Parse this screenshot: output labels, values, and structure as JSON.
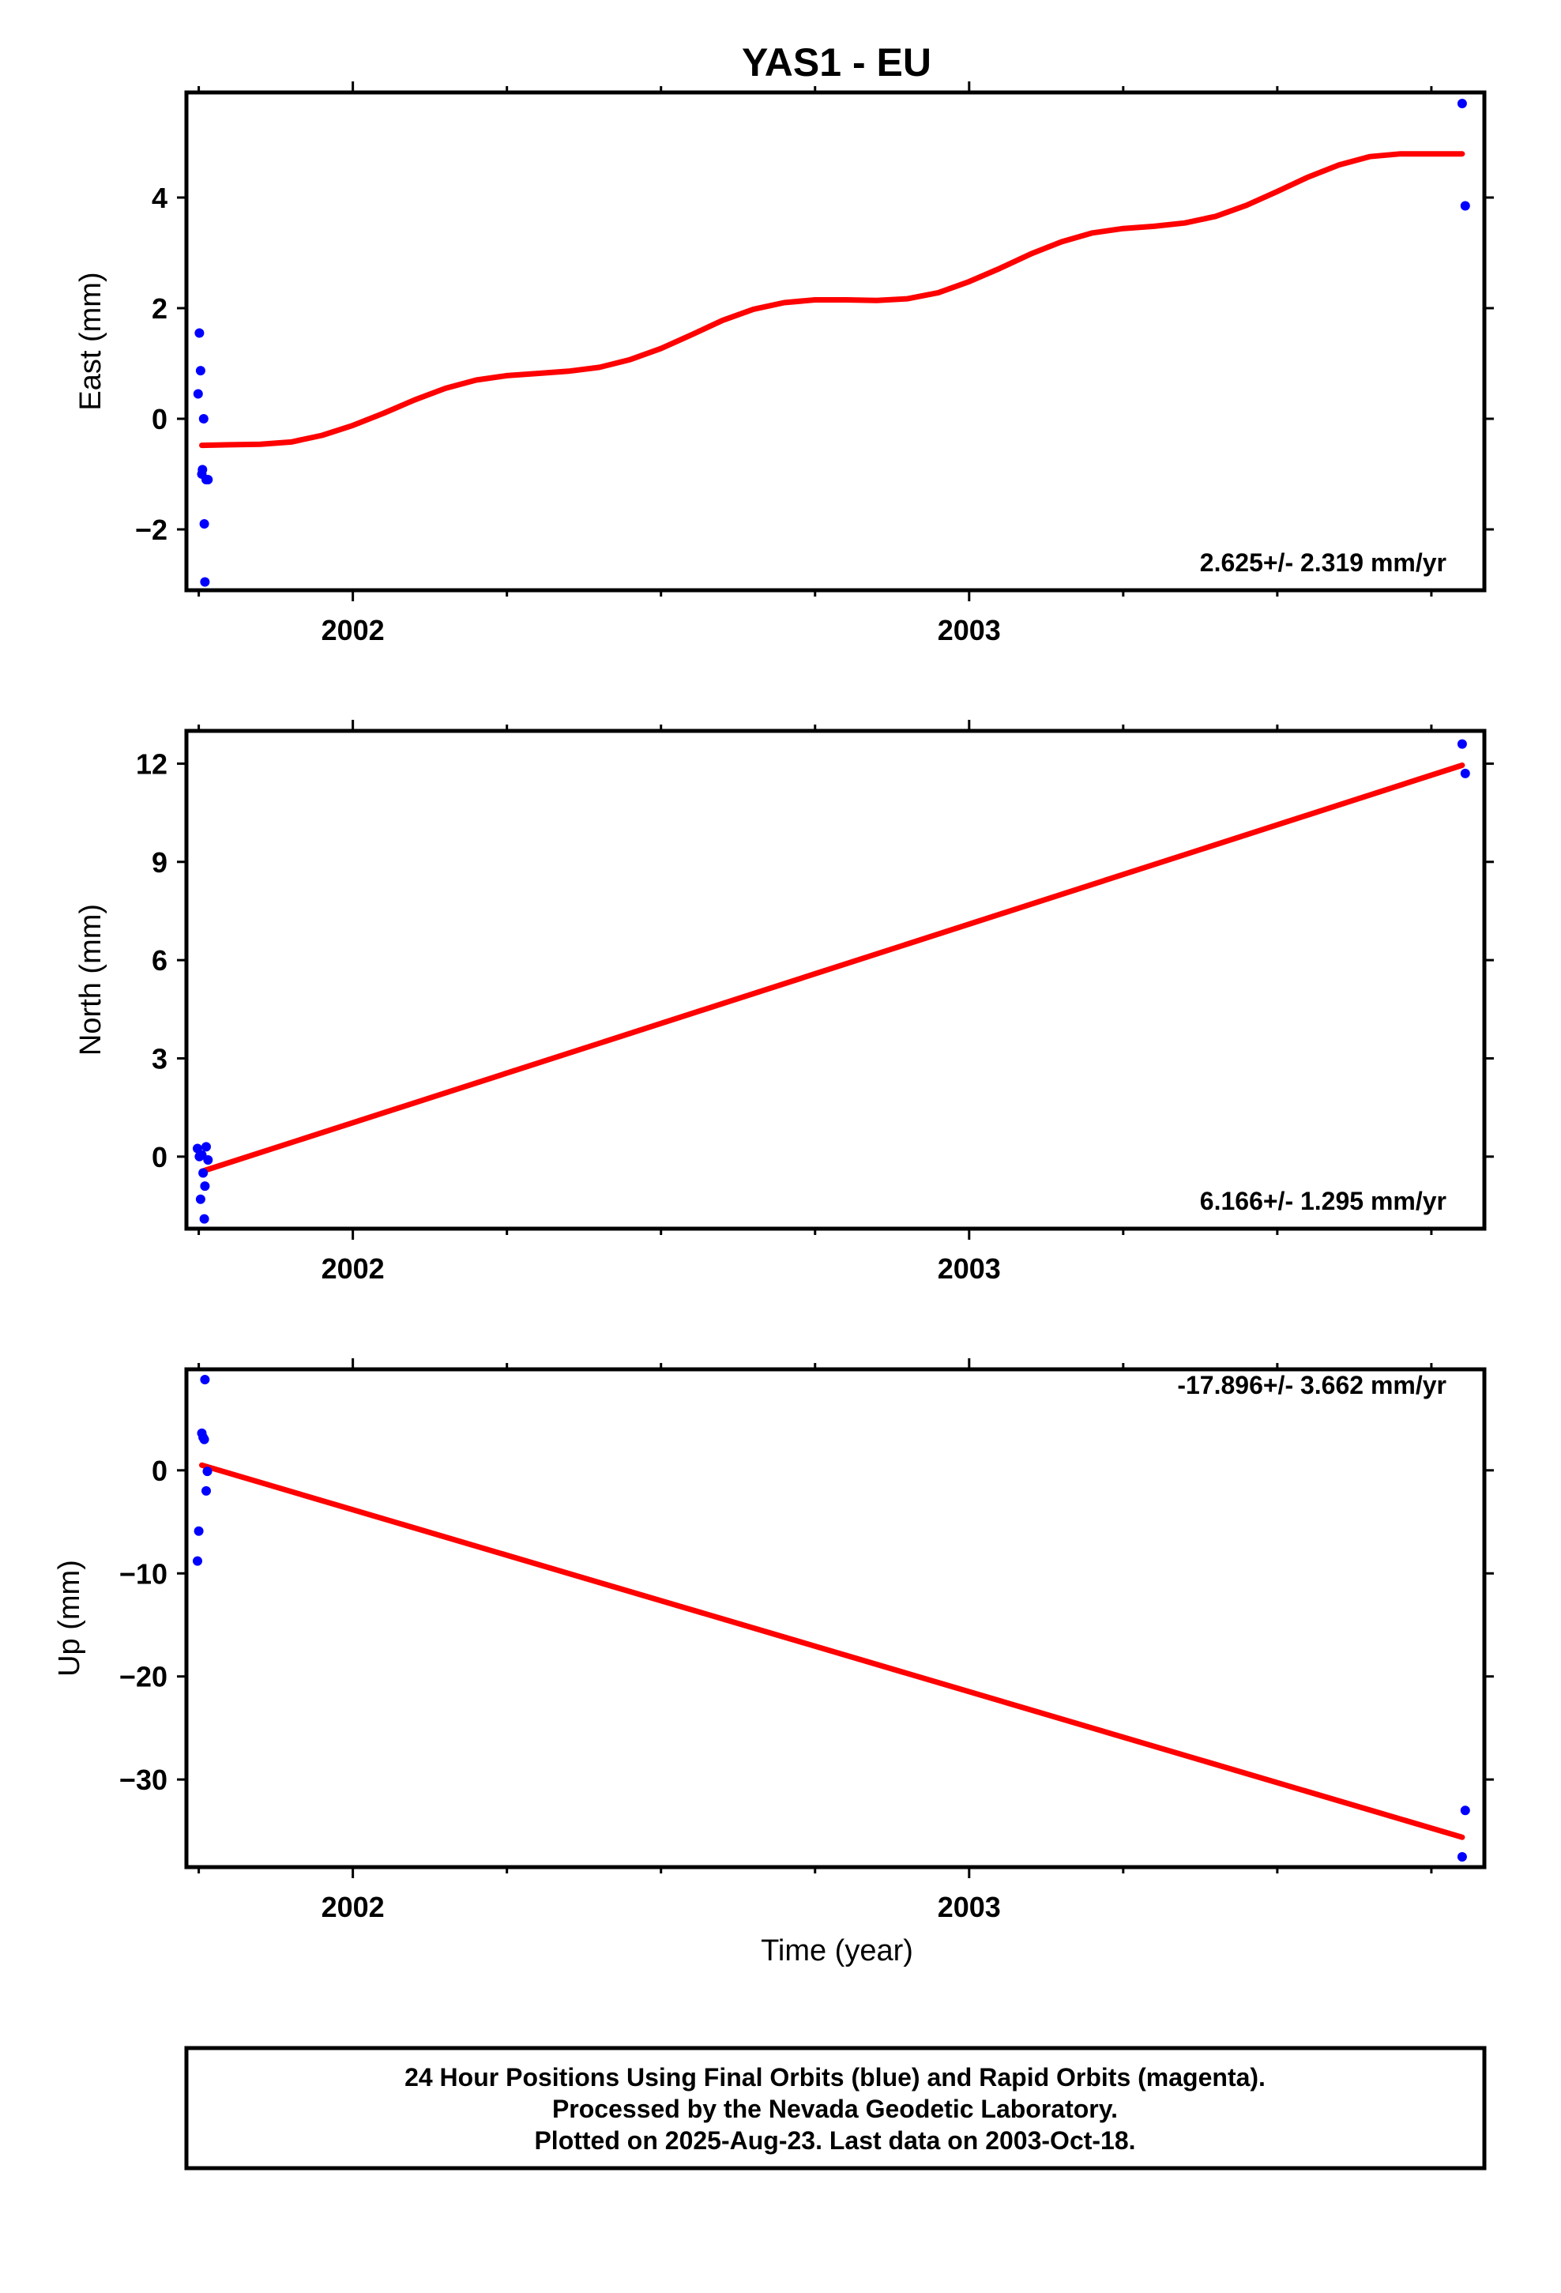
{
  "title": "YAS1 - EU",
  "colors": {
    "points": "#0000ff",
    "fit": "#ff0000",
    "frame": "#000000"
  },
  "chart_data": [
    {
      "type": "scatter",
      "panel": "east",
      "ylabel": "East (mm)",
      "xlabel": "",
      "xlim": [
        2001.73,
        2003.836
      ],
      "ylim": [
        -3.1,
        5.9
      ],
      "yticks": [
        -2,
        0,
        2,
        4
      ],
      "xticks_major": [
        2002,
        2003
      ],
      "xtick_labels": [
        "2002",
        "2003"
      ],
      "rate_label": "2.625+/- 2.319 mm/yr",
      "series": [
        {
          "type": "scatter",
          "x": [
            2001.749,
            2001.751,
            2001.753,
            2001.755,
            2001.756,
            2001.758,
            2001.759,
            2001.76,
            2001.762,
            2001.765,
            2003.8,
            2003.805
          ],
          "y": [
            0.45,
            1.55,
            0.87,
            -1.0,
            -0.92,
            0.0,
            -1.9,
            -2.95,
            -1.1,
            -1.1,
            5.7,
            3.85
          ]
        },
        {
          "type": "line",
          "x": [
            2001.755,
            2001.8,
            2001.85,
            2001.9,
            2001.95,
            2002.0,
            2002.05,
            2002.1,
            2002.15,
            2002.2,
            2002.25,
            2002.3,
            2002.35,
            2002.4,
            2002.45,
            2002.5,
            2002.55,
            2002.6,
            2002.65,
            2002.7,
            2002.75,
            2002.8,
            2002.85,
            2002.9,
            2002.95,
            2003.0,
            2003.05,
            2003.1,
            2003.15,
            2003.2,
            2003.25,
            2003.3,
            2003.35,
            2003.4,
            2003.45,
            2003.5,
            2003.55,
            2003.6,
            2003.65,
            2003.7,
            2003.75,
            2003.8
          ],
          "y": [
            -0.48,
            -0.47,
            -0.46,
            -0.42,
            -0.3,
            -0.12,
            0.1,
            0.34,
            0.55,
            0.7,
            0.78,
            0.82,
            0.86,
            0.93,
            1.07,
            1.27,
            1.52,
            1.78,
            1.98,
            2.1,
            2.15,
            2.15,
            2.14,
            2.17,
            2.28,
            2.48,
            2.72,
            2.98,
            3.2,
            3.36,
            3.44,
            3.48,
            3.54,
            3.66,
            3.86,
            4.11,
            4.37,
            4.59,
            4.74,
            4.79,
            4.79,
            4.79
          ]
        }
      ]
    },
    {
      "type": "scatter",
      "panel": "north",
      "ylabel": "North (mm)",
      "xlabel": "",
      "xlim": [
        2001.73,
        2003.836
      ],
      "ylim": [
        -2.2,
        13.0
      ],
      "yticks": [
        0,
        3,
        6,
        9,
        12
      ],
      "xticks_major": [
        2002,
        2003
      ],
      "xtick_labels": [
        "2002",
        "2003"
      ],
      "rate_label": "6.166+/- 1.295 mm/yr",
      "series": [
        {
          "type": "scatter",
          "x": [
            2001.748,
            2001.751,
            2001.753,
            2001.755,
            2001.757,
            2001.759,
            2001.76,
            2001.762,
            2001.765,
            2003.8,
            2003.805
          ],
          "y": [
            0.25,
            0.0,
            -1.3,
            0.05,
            -0.5,
            -1.9,
            -0.9,
            0.3,
            -0.1,
            12.6,
            11.7
          ]
        },
        {
          "type": "line",
          "x": [
            2001.755,
            2003.8
          ],
          "y": [
            -0.45,
            11.95
          ]
        }
      ]
    },
    {
      "type": "scatter",
      "panel": "up",
      "ylabel": "Up (mm)",
      "xlabel": "Time (year)",
      "xlim": [
        2001.73,
        2003.836
      ],
      "ylim": [
        -38.5,
        9.8
      ],
      "yticks": [
        -30,
        -20,
        -10,
        0
      ],
      "xticks_major": [
        2002,
        2003
      ],
      "xtick_labels": [
        "2002",
        "2003"
      ],
      "rate_label": "-17.896+/- 3.662 mm/yr",
      "series": [
        {
          "type": "scatter",
          "x": [
            2001.748,
            2001.75,
            2001.755,
            2001.757,
            2001.759,
            2001.76,
            2001.762,
            2001.764,
            2003.8,
            2003.805
          ],
          "y": [
            -8.8,
            -5.9,
            3.6,
            3.2,
            3.0,
            8.8,
            -2.0,
            -0.1,
            -37.5,
            -33.0
          ]
        },
        {
          "type": "line",
          "x": [
            2001.755,
            2003.8
          ],
          "y": [
            0.5,
            -35.6
          ]
        }
      ]
    }
  ],
  "footer": {
    "lines": [
      "24 Hour Positions Using Final Orbits (blue) and Rapid Orbits (magenta).",
      "Processed by the Nevada Geodetic Laboratory.",
      "Plotted on 2025-Aug-23. Last data on 2003-Oct-18."
    ]
  }
}
